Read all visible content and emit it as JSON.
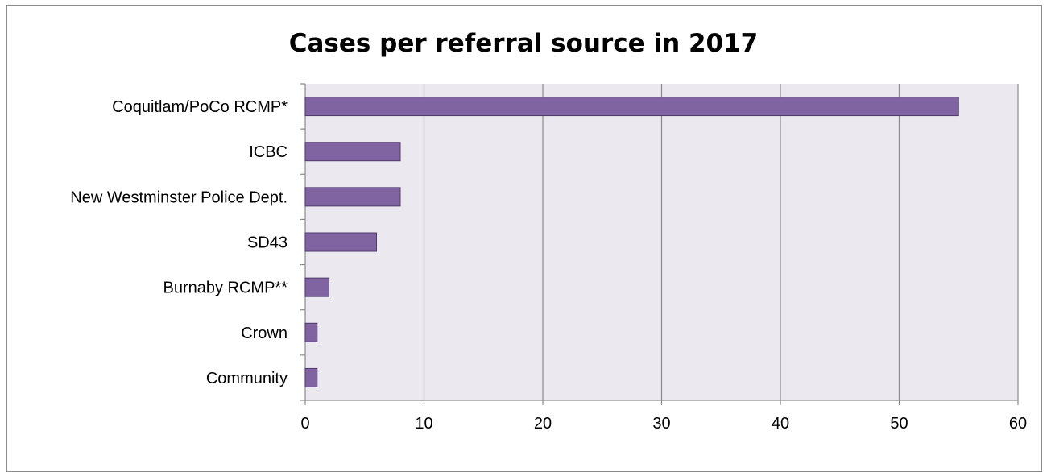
{
  "chart_data": {
    "type": "bar",
    "orientation": "horizontal",
    "title": "Cases per referral source in 2017",
    "categories": [
      "Coquitlam/PoCo RCMP*",
      "ICBC",
      "New Westminster Police Dept.",
      "SD43",
      "Burnaby RCMP**",
      "Crown",
      "Community"
    ],
    "values": [
      55,
      8,
      8,
      6,
      2,
      1,
      1
    ],
    "xlim": [
      0,
      60
    ],
    "xticks": [
      0,
      10,
      20,
      30,
      40,
      50,
      60
    ],
    "grid": true,
    "legend": "none",
    "colors": {
      "bar_fill": "#8064a2",
      "bar_stroke": "#4f3a6e",
      "plot_background": "#ebe8ef",
      "gridline": "#8a8a8a"
    }
  }
}
